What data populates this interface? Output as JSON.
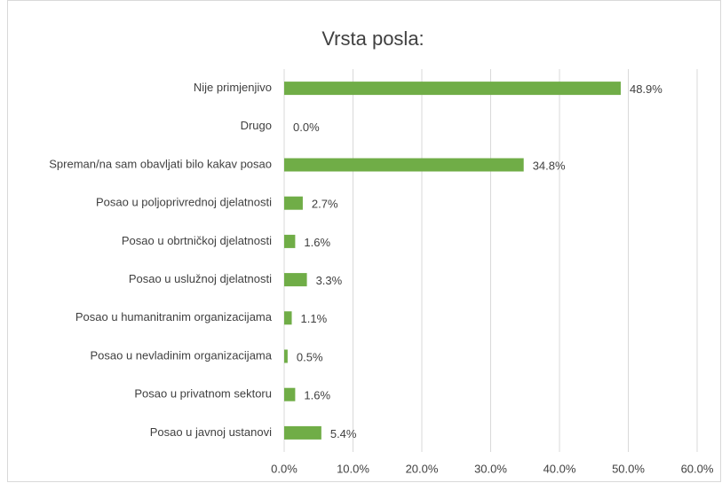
{
  "chart_data": {
    "type": "bar",
    "orientation": "horizontal",
    "title": "Vrsta posla:",
    "categories": [
      "Nije primjenjivo",
      "Drugo",
      "Spreman/na sam obavljati bilo kakav posao",
      "Posao u poljoprivrednoj djelatnosti",
      "Posao u obrtničkoj djelatnosti",
      "Posao u uslužnoj djelatnosti",
      "Posao u humanitranim organizacijama",
      "Posao u nevladinim organizacijama",
      "Posao u privatnom sektoru",
      "Posao u javnoj ustanovi"
    ],
    "values": [
      48.9,
      0,
      34.8,
      2.7,
      1.6,
      3.3,
      1.1,
      0.5,
      1.6,
      5.4
    ],
    "value_labels": [
      "48.9%",
      "0.0%",
      "34.8%",
      "2.7%",
      "1.6%",
      "3.3%",
      "1.1%",
      "0.5%",
      "1.6%",
      "5.4%"
    ],
    "color": "#70ad47",
    "xlim": [
      0,
      60
    ],
    "xticks": [
      {
        "value": 0,
        "label": "0.0%"
      },
      {
        "value": 10,
        "label": "10.0%"
      },
      {
        "value": 20,
        "label": "20.0%"
      },
      {
        "value": 30,
        "label": "30.0%"
      },
      {
        "value": 40,
        "label": "40.0%"
      },
      {
        "value": 50,
        "label": "50.0%"
      },
      {
        "value": 60,
        "label": "60.0%"
      }
    ],
    "grid": true
  }
}
